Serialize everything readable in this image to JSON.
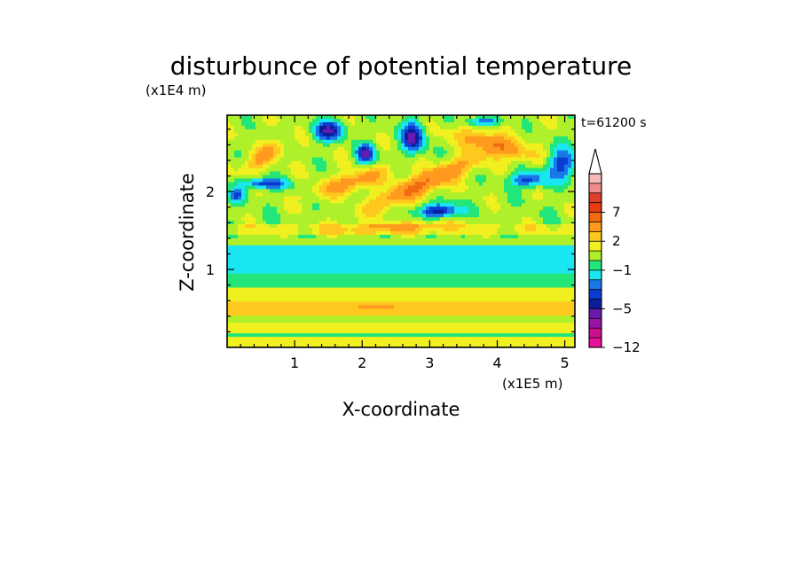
{
  "chart_data": {
    "type": "heatmap",
    "title": "disturbunce of potential temperature",
    "xlabel": "X-coordinate",
    "ylabel": "Z-coordinate",
    "x_unit_label": "(x1E5 m)",
    "y_unit_label": "(x1E4 m)",
    "time_label": "t=61200 s",
    "xlim": [
      0,
      5.15
    ],
    "ylim": [
      0,
      2.98
    ],
    "x_ticks": [
      {
        "value": 1,
        "label": "1"
      },
      {
        "value": 2,
        "label": "2"
      },
      {
        "value": 3,
        "label": "3"
      },
      {
        "value": 4,
        "label": "4"
      },
      {
        "value": 5,
        "label": "5"
      }
    ],
    "y_ticks": [
      {
        "value": 1,
        "label": "1"
      },
      {
        "value": 2,
        "label": "2"
      }
    ],
    "colorbar": {
      "levels": [
        {
          "value": -12,
          "color": "#e8109a"
        },
        {
          "value": -10,
          "color": "#c8108e"
        },
        {
          "value": -8,
          "color": "#9a14a8"
        },
        {
          "value": -6,
          "color": "#6a1ab0"
        },
        {
          "value": -5,
          "color": "#0a1e9a"
        },
        {
          "value": -4,
          "color": "#0a3cd2"
        },
        {
          "value": -3,
          "color": "#1a78e6"
        },
        {
          "value": -2,
          "color": "#19e6f0"
        },
        {
          "value": -1,
          "color": "#22e67a"
        },
        {
          "value": 0,
          "color": "#aef02a"
        },
        {
          "value": 1,
          "color": "#f0f020"
        },
        {
          "value": 2,
          "color": "#ffc81e"
        },
        {
          "value": 3,
          "color": "#ff9a1e"
        },
        {
          "value": 5,
          "color": "#f06a10"
        },
        {
          "value": 7,
          "color": "#e83c10"
        },
        {
          "value": 8,
          "color": "#e0402a"
        },
        {
          "value": 9,
          "color": "#f08c8c"
        },
        {
          "value": 10,
          "color": "#f7b8b8"
        }
      ],
      "tick_labels": [
        {
          "value": -12,
          "label": "−12"
        },
        {
          "value": -5,
          "label": "−5"
        },
        {
          "value": -1,
          "label": "−1"
        },
        {
          "value": 2,
          "label": "2"
        },
        {
          "value": 7,
          "label": "7"
        }
      ]
    }
  }
}
